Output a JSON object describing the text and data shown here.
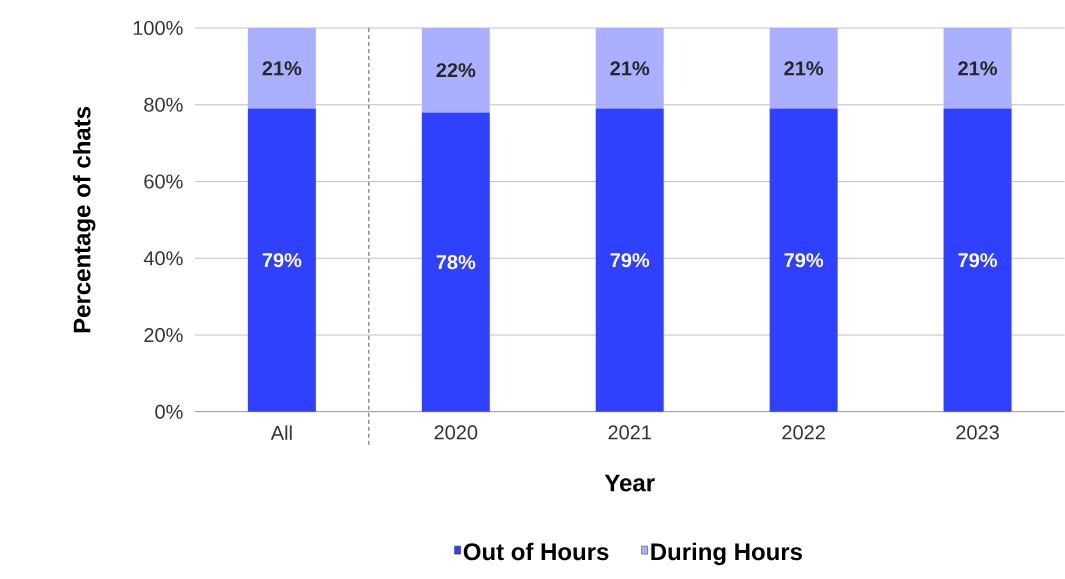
{
  "chart_data": {
    "type": "bar",
    "stacked": true,
    "xlabel": "Year",
    "ylabel": "Percentage of chats",
    "categories": [
      "All",
      "2020",
      "2021",
      "2022",
      "2023"
    ],
    "series": [
      {
        "name": "Out of Hours",
        "color": "#3040ff",
        "values": [
          79,
          78,
          79,
          79,
          79
        ],
        "value_labels": [
          "79%",
          "78%",
          "79%",
          "79%",
          "79%"
        ]
      },
      {
        "name": "During Hours",
        "color": "#aab0ff",
        "values": [
          21,
          22,
          21,
          21,
          21
        ],
        "value_labels": [
          "21%",
          "22%",
          "21%",
          "21%",
          "21%"
        ]
      }
    ],
    "ylim": [
      0,
      100
    ],
    "yticks": [
      {
        "value": 0,
        "label": "0%"
      },
      {
        "value": 20,
        "label": "20%"
      },
      {
        "value": 40,
        "label": "40%"
      },
      {
        "value": 60,
        "label": "60%"
      },
      {
        "value": 80,
        "label": "80%"
      },
      {
        "value": 100,
        "label": "100%"
      }
    ],
    "grid": "y",
    "legend": "bottom"
  }
}
